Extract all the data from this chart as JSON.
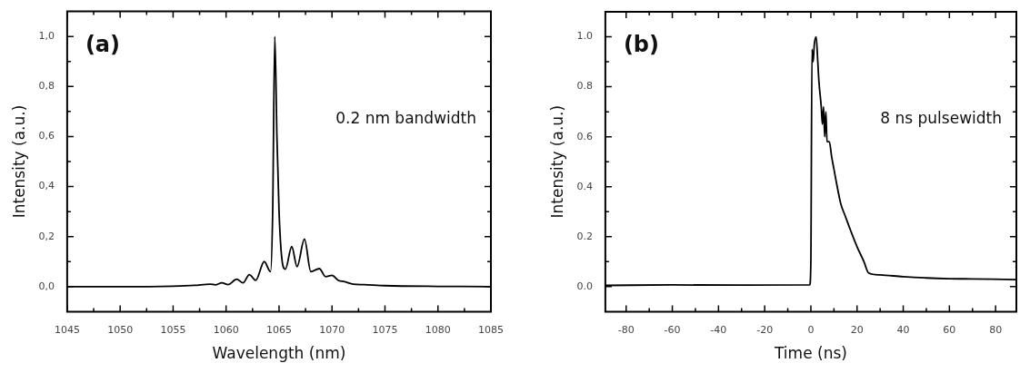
{
  "chart_data": [
    {
      "type": "line",
      "xlabel": "Wavelength (nm)",
      "ylabel": "Intensity (a.u.)",
      "annotations": [
        "(a)",
        "0.2 nm bandwidth"
      ],
      "series": [
        {
          "color": "#000000",
          "x": [
            1045,
            1050,
            1055,
            1057,
            1058.5,
            1059,
            1059.6,
            1060.2,
            1061,
            1061.6,
            1062.2,
            1062.8,
            1063.6,
            1064.2,
            1064.4,
            1064.6,
            1064.8,
            1065,
            1065.3,
            1065.6,
            1066.2,
            1066.7,
            1067.4,
            1068,
            1068.8,
            1069.4,
            1070,
            1070.6,
            1071.2,
            1072,
            1073,
            1075,
            1080,
            1085
          ],
          "values": [
            0,
            0,
            0.002,
            0.005,
            0.01,
            0.007,
            0.015,
            0.008,
            0.03,
            0.015,
            0.048,
            0.025,
            0.1,
            0.06,
            0.3,
            1.0,
            0.6,
            0.3,
            0.1,
            0.07,
            0.16,
            0.08,
            0.19,
            0.06,
            0.072,
            0.04,
            0.045,
            0.025,
            0.02,
            0.01,
            0.008,
            0.004,
            0.001,
            0
          ]
        }
      ],
      "xlim": [
        1045,
        1085
      ],
      "ylim": [
        -0.1,
        1.1
      ],
      "xticks": [
        1045,
        {
          "value": 1047.5,
          "label": null
        },
        1050,
        {
          "value": 1052.5,
          "label": null
        },
        1055,
        {
          "value": 1057.5,
          "label": null
        },
        1060,
        {
          "value": 1062.5,
          "label": null
        },
        1065,
        {
          "value": 1067.5,
          "label": null
        },
        1070,
        {
          "value": 1072.5,
          "label": null
        },
        1075,
        {
          "value": 1077.5,
          "label": null
        },
        1080,
        {
          "value": 1082.5,
          "label": null
        },
        1085
      ],
      "yticks": [
        {
          "value": 0,
          "label": "0,0"
        },
        {
          "value": 0.1,
          "label": null
        },
        {
          "value": 0.2,
          "label": "0,2"
        },
        {
          "value": 0.3,
          "label": null
        },
        {
          "value": 0.4,
          "label": "0,4"
        },
        {
          "value": 0.5,
          "label": null
        },
        {
          "value": 0.6,
          "label": "0,6"
        },
        {
          "value": 0.7,
          "label": null
        },
        {
          "value": 0.8,
          "label": "0,8"
        },
        {
          "value": 0.9,
          "label": null
        },
        {
          "value": 1.0,
          "label": "1,0"
        }
      ]
    },
    {
      "type": "line",
      "xlabel": "Time (ns)",
      "ylabel": "Intensity (a.u.)",
      "annotations": [
        "(b)",
        "8 ns pulsewidth"
      ],
      "series": [
        {
          "color": "#000000",
          "x": [
            -89,
            -60,
            -30,
            -0.5,
            0,
            0.5,
            1,
            1.5,
            2.3,
            3,
            3.5,
            4.5,
            5,
            5.5,
            6,
            6.5,
            7,
            8,
            9,
            10,
            11,
            12.5,
            13,
            15,
            17,
            20,
            23,
            25,
            30,
            40,
            50,
            60,
            70,
            89
          ],
          "values": [
            0.005,
            0.007,
            0.006,
            0.007,
            0.1,
            0.95,
            0.9,
            0.97,
            1.0,
            0.9,
            0.82,
            0.72,
            0.65,
            0.72,
            0.6,
            0.7,
            0.58,
            0.58,
            0.52,
            0.47,
            0.42,
            0.35,
            0.33,
            0.28,
            0.23,
            0.16,
            0.1,
            0.055,
            0.047,
            0.04,
            0.035,
            0.032,
            0.031,
            0.028
          ]
        }
      ],
      "xlim": [
        -89,
        89
      ],
      "ylim": [
        -0.1,
        1.1
      ],
      "xticks": [
        -80,
        {
          "value": -70,
          "label": null
        },
        -60,
        {
          "value": -50,
          "label": null
        },
        -40,
        {
          "value": -30,
          "label": null
        },
        -20,
        {
          "value": -10,
          "label": null
        },
        0,
        {
          "value": 10,
          "label": null
        },
        20,
        {
          "value": 30,
          "label": null
        },
        40,
        {
          "value": 50,
          "label": null
        },
        60,
        {
          "value": 70,
          "label": null
        },
        80
      ],
      "yticks": [
        {
          "value": 0,
          "label": "0.0"
        },
        {
          "value": 0.1,
          "label": null
        },
        {
          "value": 0.2,
          "label": "0.2"
        },
        {
          "value": 0.3,
          "label": null
        },
        {
          "value": 0.4,
          "label": "0.4"
        },
        {
          "value": 0.5,
          "label": null
        },
        {
          "value": 0.6,
          "label": "0.6"
        },
        {
          "value": 0.7,
          "label": null
        },
        {
          "value": 0.8,
          "label": "0.8"
        },
        {
          "value": 0.9,
          "label": null
        },
        {
          "value": 1.0,
          "label": "1.0"
        }
      ]
    }
  ]
}
